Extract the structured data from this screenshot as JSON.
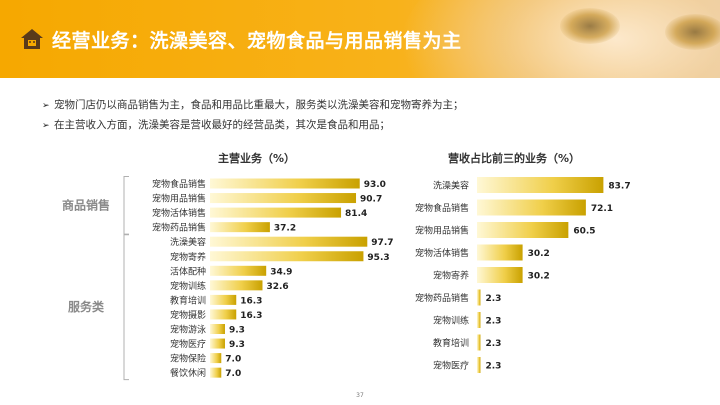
{
  "header": {
    "title": "经营业务：洗澡美容、宠物食品与用品销售为主",
    "logo_icon": "pet-shop-house-icon"
  },
  "bullets": [
    "宠物门店仍以商品销售为主，食品和用品比重最大，服务类以洗澡美容和宠物寄养为主；",
    "在主营收入方面，洗澡美容是营收最好的经营品类，其次是食品和用品；"
  ],
  "colors": {
    "header_orange": "#f6a800",
    "bar_dark": "#c9a100",
    "bar_light": "#fff8d6",
    "group_label": "#8a8a8a"
  },
  "chart_data": [
    {
      "type": "bar",
      "orientation": "horizontal",
      "title": "主营业务（%）",
      "groups": [
        {
          "name": "商品销售",
          "categories": [
            "宠物食品销售",
            "宠物用品销售",
            "宠物活体销售",
            "宠物药品销售"
          ]
        },
        {
          "name": "服务类",
          "categories": [
            "洗澡美容",
            "宠物寄养",
            "活体配种",
            "宠物训练",
            "教育培训",
            "宠物摄影",
            "宠物游泳",
            "宠物医疗",
            "宠物保险",
            "餐饮休闲"
          ]
        }
      ],
      "categories": [
        "宠物食品销售",
        "宠物用品销售",
        "宠物活体销售",
        "宠物药品销售",
        "洗澡美容",
        "宠物寄养",
        "活体配种",
        "宠物训练",
        "教育培训",
        "宠物摄影",
        "宠物游泳",
        "宠物医疗",
        "宠物保险",
        "餐饮休闲"
      ],
      "values": [
        93.0,
        90.7,
        81.4,
        37.2,
        97.7,
        95.3,
        34.9,
        32.6,
        16.3,
        16.3,
        9.3,
        9.3,
        7.0,
        7.0
      ],
      "value_labels": [
        "93.0",
        "90.7",
        "81.4",
        "37.2",
        "97.7",
        "95.3",
        "34.9",
        "32.6",
        "16.3",
        "16.3",
        "9.3",
        "9.3",
        "7.0",
        "7.0"
      ],
      "xlim": [
        0,
        100
      ]
    },
    {
      "type": "bar",
      "orientation": "horizontal",
      "title": "营收占比前三的业务（%）",
      "categories": [
        "洗澡美容",
        "宠物食品销售",
        "宠物用品销售",
        "宠物活体销售",
        "宠物寄养",
        "宠物药品销售",
        "宠物训练",
        "教育培训",
        "宠物医疗"
      ],
      "values": [
        83.7,
        72.1,
        60.5,
        30.2,
        30.2,
        2.3,
        2.3,
        2.3,
        2.3
      ],
      "value_labels": [
        "83.7",
        "72.1",
        "60.5",
        "30.2",
        "30.2",
        "2.3",
        "2.3",
        "2.3",
        "2.3"
      ],
      "xlim": [
        0,
        100
      ]
    }
  ],
  "page_number": "37"
}
